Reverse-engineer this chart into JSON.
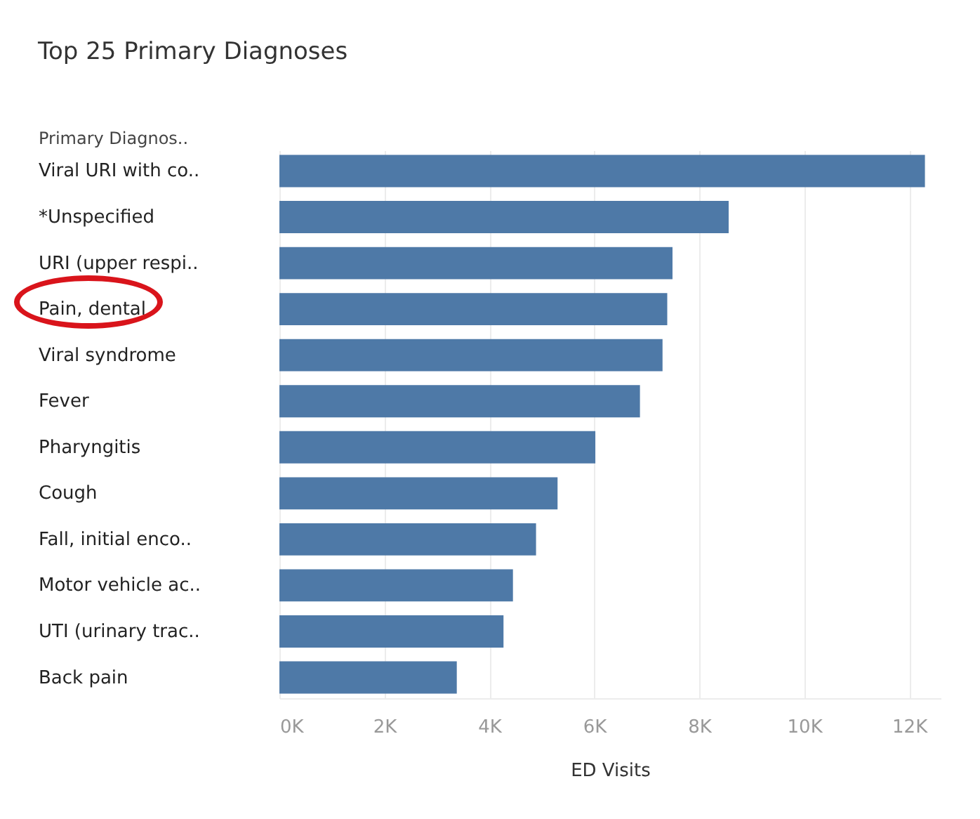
{
  "chart_data": {
    "type": "bar",
    "orientation": "horizontal",
    "title": "Top 25 Primary Diagnoses",
    "ylabel": "Primary Diagnos..",
    "xlabel": "ED Visits",
    "categories": [
      "Viral URI with co..",
      "*Unspecified",
      "URI (upper respi..",
      "Pain, dental",
      "Viral syndrome",
      "Fever",
      "Pharyngitis",
      "Cough",
      "Fall, initial enco..",
      "Motor vehicle ac..",
      "UTI (urinary trac..",
      "Back pain"
    ],
    "values": [
      12300,
      8560,
      7490,
      7390,
      7300,
      6870,
      6020,
      5300,
      4890,
      4450,
      4270,
      3380
    ],
    "color": "#4e79a7",
    "xlim": [
      0,
      12600
    ],
    "xticks": [
      {
        "value": 0,
        "label": "0K"
      },
      {
        "value": 2000,
        "label": "2K"
      },
      {
        "value": 4000,
        "label": "4K"
      },
      {
        "value": 6000,
        "label": "6K"
      },
      {
        "value": 8000,
        "label": "8K"
      },
      {
        "value": 10000,
        "label": "10K"
      },
      {
        "value": 12000,
        "label": "12K"
      }
    ],
    "grid": "x"
  }
}
